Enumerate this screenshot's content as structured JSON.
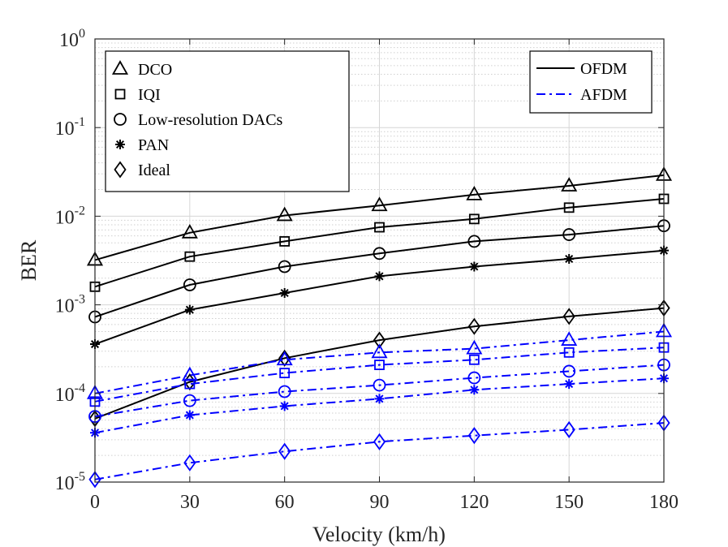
{
  "chart_data": {
    "type": "line",
    "xlabel": "Velocity (km/h)",
    "ylabel": "BER",
    "yscale": "log",
    "xlim": [
      0,
      180
    ],
    "ylim": [
      1e-05,
      1
    ],
    "grid": true,
    "x": [
      0,
      30,
      60,
      90,
      120,
      150,
      180
    ],
    "x_tick_labels": [
      "0",
      "30",
      "60",
      "90",
      "120",
      "150",
      "180"
    ],
    "y_ticks": [
      {
        "value": 1e-05,
        "base": "10",
        "exp": "-5"
      },
      {
        "value": 0.0001,
        "base": "10",
        "exp": "-4"
      },
      {
        "value": 0.001,
        "base": "10",
        "exp": "-3"
      },
      {
        "value": 0.01,
        "base": "10",
        "exp": "-2"
      },
      {
        "value": 0.1,
        "base": "10",
        "exp": "-1"
      },
      {
        "value": 1,
        "base": "10",
        "exp": "0"
      }
    ],
    "series": [
      {
        "name": "DCO",
        "scheme": "OFDM",
        "marker": "triangle",
        "values": [
          0.0032,
          0.0065,
          0.0102,
          0.0132,
          0.0175,
          0.022,
          0.029
        ]
      },
      {
        "name": "IQI",
        "scheme": "OFDM",
        "marker": "square",
        "values": [
          0.0016,
          0.0035,
          0.0052,
          0.0075,
          0.0093,
          0.0125,
          0.0157
        ]
      },
      {
        "name": "Low-resolution DACs",
        "scheme": "OFDM",
        "marker": "circle",
        "values": [
          0.00073,
          0.00168,
          0.0027,
          0.0038,
          0.0052,
          0.0062,
          0.0078
        ]
      },
      {
        "name": "PAN",
        "scheme": "OFDM",
        "marker": "star",
        "values": [
          0.00036,
          0.00088,
          0.00136,
          0.0021,
          0.0027,
          0.0033,
          0.0041
        ]
      },
      {
        "name": "Ideal",
        "scheme": "OFDM",
        "marker": "diamond",
        "values": [
          5.2e-05,
          0.000135,
          0.00025,
          0.0004,
          0.00057,
          0.00074,
          0.00092
        ]
      },
      {
        "name": "DCO",
        "scheme": "AFDM",
        "marker": "triangle",
        "values": [
          0.0001,
          0.00016,
          0.00024,
          0.00029,
          0.00032,
          0.0004,
          0.0005
        ]
      },
      {
        "name": "IQI",
        "scheme": "AFDM",
        "marker": "square",
        "values": [
          8.1e-05,
          0.000128,
          0.00017,
          0.00021,
          0.00024,
          0.00029,
          0.00033
        ]
      },
      {
        "name": "Low-resolution DACs",
        "scheme": "AFDM",
        "marker": "circle",
        "values": [
          5.5e-05,
          8.3e-05,
          0.000105,
          0.000124,
          0.00015,
          0.000178,
          0.00021
        ]
      },
      {
        "name": "PAN",
        "scheme": "AFDM",
        "marker": "star",
        "values": [
          3.6e-05,
          5.7e-05,
          7.2e-05,
          8.7e-05,
          0.00011,
          0.000128,
          0.000148
        ]
      },
      {
        "name": "Ideal",
        "scheme": "AFDM",
        "marker": "diamond",
        "values": [
          1.07e-05,
          1.65e-05,
          2.22e-05,
          2.85e-05,
          3.35e-05,
          3.9e-05,
          4.65e-05
        ]
      }
    ],
    "schemes": [
      {
        "name": "OFDM",
        "color": "#000000",
        "dash": "solid"
      },
      {
        "name": "AFDM",
        "color": "#0000ff",
        "dash": "dashdot"
      }
    ],
    "legend_markers": {
      "placement": "top-left",
      "items": [
        {
          "label": "DCO",
          "marker": "triangle"
        },
        {
          "label": "IQI",
          "marker": "square"
        },
        {
          "label": "Low-resolution DACs",
          "marker": "circle"
        },
        {
          "label": "PAN",
          "marker": "star"
        },
        {
          "label": "Ideal",
          "marker": "diamond"
        }
      ]
    },
    "legend_schemes": {
      "placement": "top-right",
      "items": [
        {
          "label": "OFDM",
          "color": "#000000",
          "dash": "solid"
        },
        {
          "label": "AFDM",
          "color": "#0000ff",
          "dash": "dashdot"
        }
      ]
    }
  }
}
